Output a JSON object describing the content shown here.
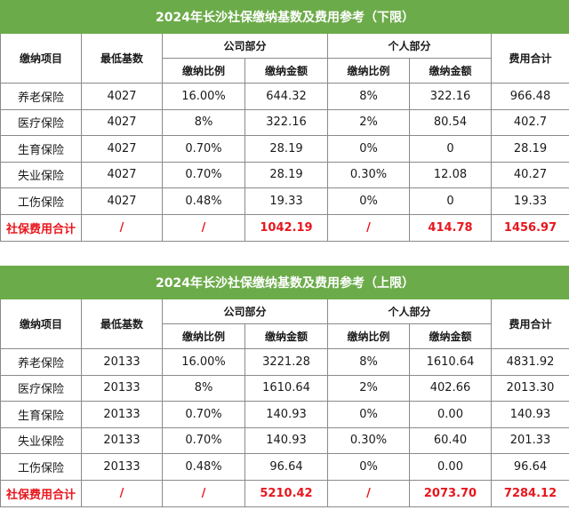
{
  "headers": {
    "item": "缴纳项目",
    "base": "最低基数",
    "company": "公司部分",
    "personal": "个人部分",
    "total_fee": "费用合计",
    "rate": "缴纳比例",
    "amount": "缴纳金额"
  },
  "tables": [
    {
      "title": "2024年长沙社保缴纳基数及费用参考（下限）",
      "rows": [
        {
          "item": "养老保险",
          "base": "4027",
          "company_rate": "16.00%",
          "company_amount": "644.32",
          "personal_rate": "8%",
          "personal_amount": "322.16",
          "total": "966.48"
        },
        {
          "item": "医疗保险",
          "base": "4027",
          "company_rate": "8%",
          "company_amount": "322.16",
          "personal_rate": "2%",
          "personal_amount": "80.54",
          "total": "402.7"
        },
        {
          "item": "生育保险",
          "base": "4027",
          "company_rate": "0.70%",
          "company_amount": "28.19",
          "personal_rate": "0%",
          "personal_amount": "0",
          "total": "28.19"
        },
        {
          "item": "失业保险",
          "base": "4027",
          "company_rate": "0.70%",
          "company_amount": "28.19",
          "personal_rate": "0.30%",
          "personal_amount": "12.08",
          "total": "40.27"
        },
        {
          "item": "工伤保险",
          "base": "4027",
          "company_rate": "0.48%",
          "company_amount": "19.33",
          "personal_rate": "0%",
          "personal_amount": "0",
          "total": "19.33"
        }
      ],
      "summary": {
        "item": "社保费用合计",
        "base": "/",
        "company_rate": "/",
        "company_amount": "1042.19",
        "personal_rate": "/",
        "personal_amount": "414.78",
        "total": "1456.97"
      }
    },
    {
      "title": "2024年长沙社保缴纳基数及费用参考（上限）",
      "rows": [
        {
          "item": "养老保险",
          "base": "20133",
          "company_rate": "16.00%",
          "company_amount": "3221.28",
          "personal_rate": "8%",
          "personal_amount": "1610.64",
          "total": "4831.92"
        },
        {
          "item": "医疗保险",
          "base": "20133",
          "company_rate": "8%",
          "company_amount": "1610.64",
          "personal_rate": "2%",
          "personal_amount": "402.66",
          "total": "2013.30"
        },
        {
          "item": "生育保险",
          "base": "20133",
          "company_rate": "0.70%",
          "company_amount": "140.93",
          "personal_rate": "0%",
          "personal_amount": "0.00",
          "total": "140.93"
        },
        {
          "item": "失业保险",
          "base": "20133",
          "company_rate": "0.70%",
          "company_amount": "140.93",
          "personal_rate": "0.30%",
          "personal_amount": "60.40",
          "total": "201.33"
        },
        {
          "item": "工伤保险",
          "base": "20133",
          "company_rate": "0.48%",
          "company_amount": "96.64",
          "personal_rate": "0%",
          "personal_amount": "0.00",
          "total": "96.64"
        }
      ],
      "summary": {
        "item": "社保费用合计",
        "base": "/",
        "company_rate": "/",
        "company_amount": "5210.42",
        "personal_rate": "/",
        "personal_amount": "2073.70",
        "total": "7284.12"
      }
    }
  ]
}
